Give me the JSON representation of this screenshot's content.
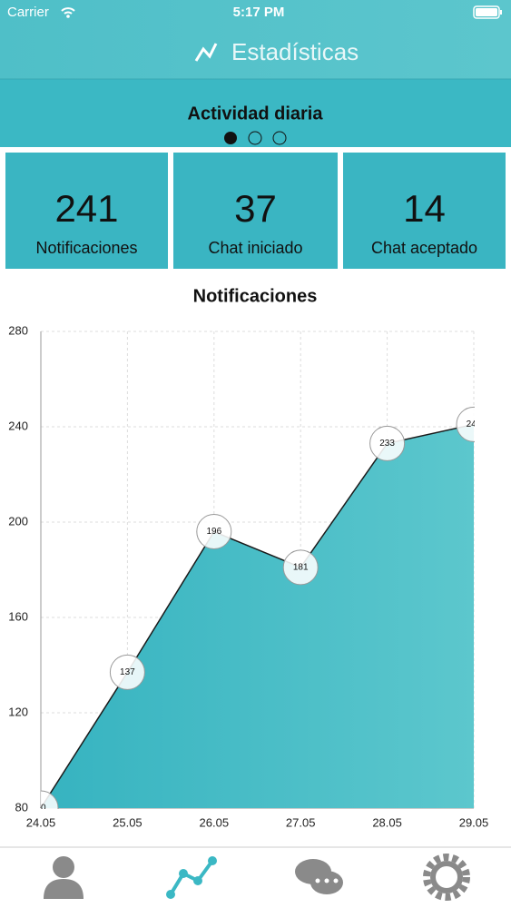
{
  "status_bar": {
    "carrier": "Carrier",
    "time": "5:17 PM"
  },
  "header": {
    "title": "Estadísticas"
  },
  "section": {
    "title": "Actividad diaria"
  },
  "stats": [
    {
      "value": "241",
      "label": "Notificaciones"
    },
    {
      "value": "37",
      "label": "Chat iniciado"
    },
    {
      "value": "14",
      "label": "Chat aceptado"
    }
  ],
  "chart_data": {
    "type": "area",
    "title": "Notificaciones",
    "categories": [
      "24.05",
      "25.05",
      "26.05",
      "27.05",
      "28.05",
      "29.05"
    ],
    "values": [
      80,
      137,
      196,
      181,
      233,
      241
    ],
    "color": "#3ab5c2",
    "line_color": "#1a1a1a",
    "ylim": [
      80,
      280
    ],
    "yticks": [
      80,
      120,
      160,
      200,
      240,
      280
    ],
    "grid": true
  }
}
